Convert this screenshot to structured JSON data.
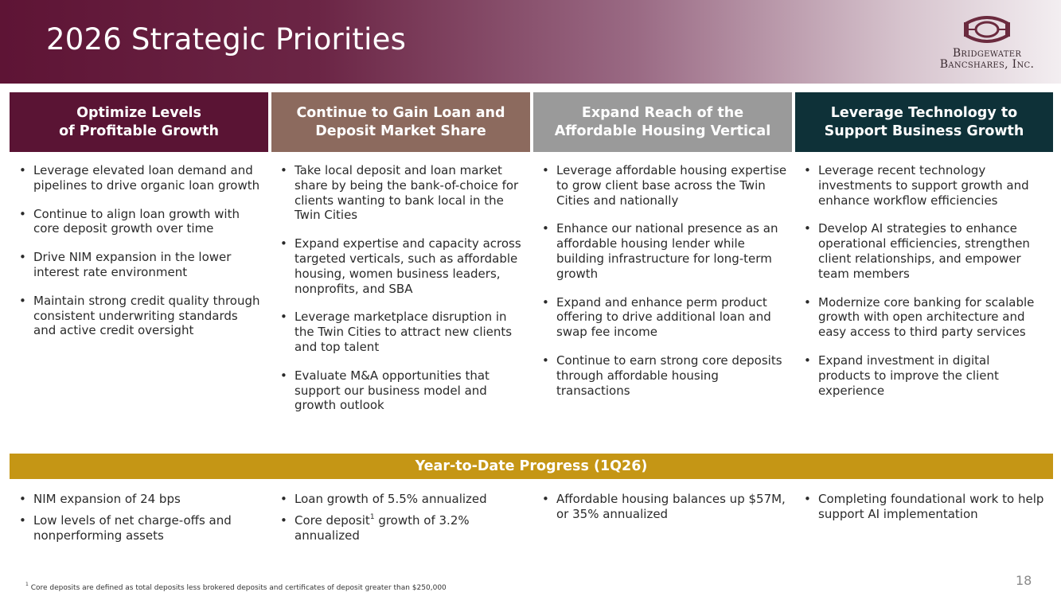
{
  "header": {
    "title": "2026 Strategic Priorities"
  },
  "logo": {
    "line1": "Bridgewater",
    "line2": "Bancshares, Inc."
  },
  "pillars": [
    {
      "title": "Optimize Levels\nof Profitable Growth",
      "color": "#5a1434",
      "bullets": [
        "Leverage elevated loan demand and pipelines to drive organic loan growth",
        "Continue to align loan growth with core deposit growth over time",
        "Drive NIM expansion in the lower interest rate environment",
        "Maintain strong credit quality through consistent underwriting standards and active credit oversight"
      ],
      "progress": [
        "NIM expansion of 24 bps",
        "Low levels of net charge-offs and nonperforming assets"
      ]
    },
    {
      "title": "Continue to Gain Loan and\nDeposit Market Share",
      "color": "#8c6a5e",
      "bullets": [
        "Take local deposit and loan market share by being the bank-of-choice for clients wanting to bank local in the Twin Cities",
        "Expand expertise and capacity across targeted verticals, such as affordable housing, women business leaders, nonprofits, and SBA",
        "Leverage marketplace disruption in the Twin Cities to attract new clients and top talent",
        "Evaluate M&A opportunities that support our business model and growth outlook"
      ],
      "progress": [
        "Loan growth of 5.5% annualized",
        {
          "pre": "Core deposit",
          "sup": "1",
          "post": " growth of 3.2% annualized"
        }
      ]
    },
    {
      "title": "Expand Reach of the\nAffordable Housing Vertical",
      "color": "#9a9a9a",
      "bullets": [
        "Leverage affordable housing expertise to grow client base across the Twin Cities and nationally",
        "Enhance our national presence as an affordable housing lender while building infrastructure for long-term growth",
        "Expand and enhance perm product offering to drive additional loan and swap fee income",
        "Continue to earn strong core deposits through affordable housing transactions"
      ],
      "progress": [
        "Affordable housing balances up $57M, or 35% annualized"
      ]
    },
    {
      "title": "Leverage Technology to\nSupport Business Growth",
      "color": "#0e3138",
      "bullets": [
        "Leverage recent technology investments to support growth and enhance workflow efficiencies",
        "Develop AI strategies to enhance operational efficiencies, strengthen client relationships, and empower team members",
        "Modernize core banking for scalable growth with open architecture and easy access to third party services",
        "Expand investment in digital products to improve the client experience"
      ],
      "progress": [
        "Completing foundational work to help support AI implementation"
      ]
    }
  ],
  "progress_header": "Year-to-Date Progress (1Q26)",
  "progress_color": "#c59615",
  "footnote": {
    "sup": "1",
    "text": " Core deposits are defined as total deposits less brokered deposits and certificates of deposit greater than $250,000"
  },
  "page_number": "18",
  "icons": {
    "logo": "bridgewater-emblem-icon"
  }
}
